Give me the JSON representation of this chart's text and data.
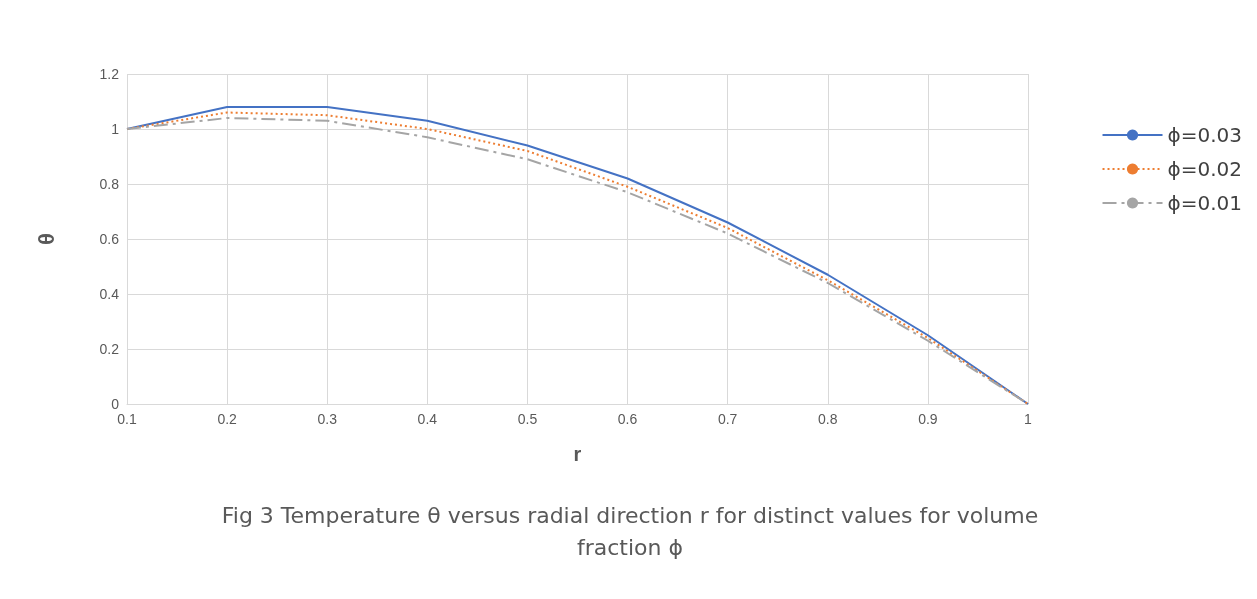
{
  "chart_data": {
    "type": "line",
    "title": "Fig 3 Temperature θ versus radial direction r for distinct values for volume fraction ϕ",
    "xlabel": "r",
    "ylabel": "θ",
    "x": [
      0.1,
      0.2,
      0.3,
      0.4,
      0.5,
      0.6,
      0.7,
      0.8,
      0.9,
      1
    ],
    "series": [
      {
        "name": "ϕ=0.03",
        "color": "#4472c4",
        "line_style": "solid",
        "values": [
          1,
          1.08,
          1.08,
          1.03,
          0.94,
          0.82,
          0.66,
          0.47,
          0.25,
          0
        ]
      },
      {
        "name": "ϕ=0.02",
        "color": "#ed7d31",
        "line_style": "dotted",
        "values": [
          1,
          1.06,
          1.05,
          1.0,
          0.92,
          0.79,
          0.64,
          0.45,
          0.24,
          0
        ]
      },
      {
        "name": "ϕ=0.01",
        "color": "#a5a5a5",
        "line_style": "dashed",
        "values": [
          1,
          1.04,
          1.03,
          0.97,
          0.89,
          0.77,
          0.62,
          0.44,
          0.23,
          0
        ]
      }
    ],
    "xlim": [
      0.1,
      1
    ],
    "xticks": [
      0.1,
      0.2,
      0.3,
      0.4,
      0.5,
      0.6,
      0.7,
      0.8,
      0.9,
      1
    ],
    "ylim": [
      0,
      1.2
    ],
    "yticks": [
      0,
      0.2,
      0.4,
      0.6,
      0.8,
      1,
      1.2
    ],
    "grid": true,
    "legend": "right",
    "marker": "none"
  }
}
